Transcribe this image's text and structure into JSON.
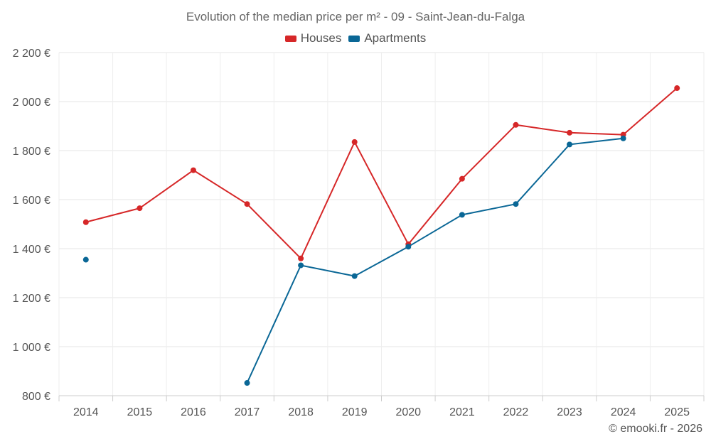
{
  "chart_data": {
    "type": "line",
    "title": "Evolution of the median price per m² - 09 - Saint-Jean-du-Falga",
    "categories": [
      "2014",
      "2015",
      "2016",
      "2017",
      "2018",
      "2019",
      "2020",
      "2021",
      "2022",
      "2023",
      "2024",
      "2025"
    ],
    "ylim": [
      800,
      2200
    ],
    "yticks": [
      800,
      1000,
      1200,
      1400,
      1600,
      1800,
      2000,
      2200
    ],
    "ytick_labels": [
      "800 €",
      "1 000 €",
      "1 200 €",
      "1 400 €",
      "1 600 €",
      "1 800 €",
      "2 000 €",
      "2 200 €"
    ],
    "grid": true,
    "legend_position": "top-center",
    "series": [
      {
        "name": "Houses",
        "color": "#d62728",
        "values": [
          1508,
          1565,
          1720,
          1582,
          1360,
          1835,
          1418,
          1685,
          1905,
          1873,
          1865,
          2055
        ]
      },
      {
        "name": "Apartments",
        "color": "#0a6796",
        "values": [
          1355,
          null,
          null,
          852,
          1332,
          1288,
          1408,
          1538,
          1582,
          1825,
          1850,
          null
        ]
      }
    ]
  },
  "credits": "© emooki.fr - 2026"
}
